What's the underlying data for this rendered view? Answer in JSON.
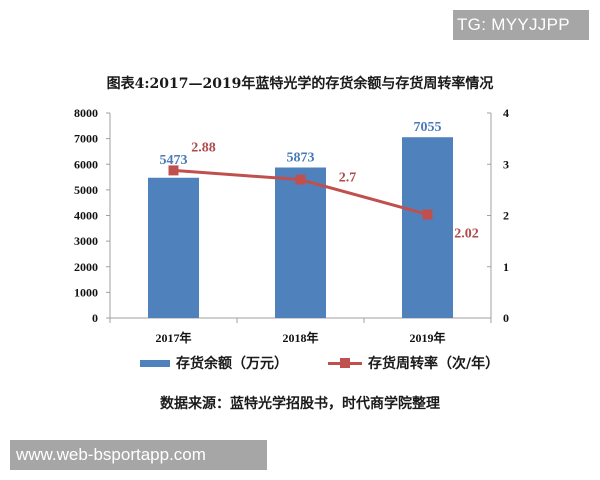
{
  "watermarks": {
    "top_right": "TG: MYYJJPP",
    "bottom_left": "www.web-bsportapp.com"
  },
  "chart": {
    "title": "图表4:2017—2019年蓝特光学的存货余额与存货周转率情况",
    "source": "数据来源：蓝特光学招股书，时代商学院整理",
    "legend": {
      "bar": "存货余额（万元）",
      "line": "存货周转率（次/年）"
    },
    "colors": {
      "bar": "#4f81bd",
      "line": "#c0504d",
      "bar_label": "#4a7ab8",
      "line_label": "#b04a4a"
    }
  },
  "chart_data": {
    "type": "bar+line",
    "title": "图表4:2017—2019年蓝特光学的存货余额与存货周转率情况",
    "categories": [
      "2017年",
      "2018年",
      "2019年"
    ],
    "series": [
      {
        "name": "存货余额（万元）",
        "type": "bar",
        "axis": "left",
        "values": [
          5473,
          5873,
          7055
        ],
        "labels": [
          "5473",
          "5873",
          "7055"
        ]
      },
      {
        "name": "存货周转率（次/年）",
        "type": "line",
        "axis": "right",
        "values": [
          2.88,
          2.7,
          2.02
        ],
        "labels": [
          "2.88",
          "2.7",
          "2.02"
        ]
      }
    ],
    "y_left": {
      "ylim": [
        0,
        8000
      ],
      "ticks": [
        "0",
        "1000",
        "2000",
        "3000",
        "4000",
        "5000",
        "6000",
        "7000",
        "8000"
      ]
    },
    "y_right": {
      "ylim": [
        0,
        4
      ],
      "ticks": [
        "0",
        "1",
        "2",
        "3",
        "4"
      ]
    },
    "xlabel": "",
    "ylabel": "",
    "grid": false,
    "legend_position": "bottom",
    "source": "数据来源：蓝特光学招股书，时代商学院整理"
  }
}
